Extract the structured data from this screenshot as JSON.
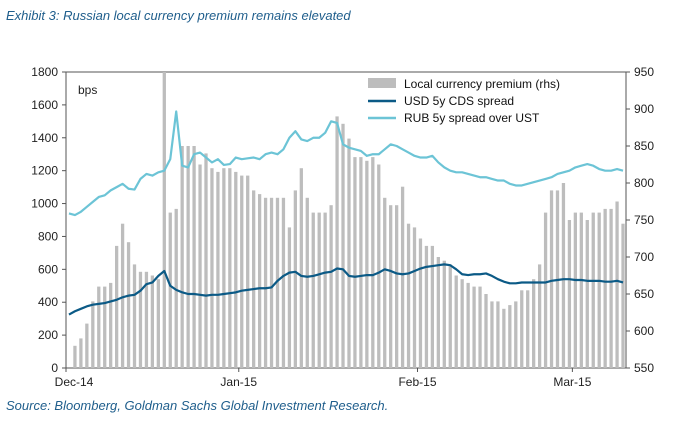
{
  "title": "Exhibit 3: Russian local currency premium remains elevated",
  "source": "Source:  Bloomberg, Goldman Sachs Global Investment Research.",
  "chart_data": {
    "type": "bar+line",
    "unit_label": "bps",
    "x_tick_labels": [
      "Dec-14",
      "Jan-15",
      "Feb-15",
      "Mar-15"
    ],
    "x_tick_index": [
      0,
      29,
      59,
      85
    ],
    "y_left": {
      "min": 0,
      "max": 1800,
      "ticks": [
        0,
        200,
        400,
        600,
        800,
        1000,
        1200,
        1400,
        1600,
        1800
      ]
    },
    "y_right": {
      "min": 550,
      "max": 950,
      "ticks": [
        550,
        600,
        650,
        700,
        750,
        800,
        850,
        900,
        950
      ]
    },
    "grid": false,
    "legend_position": "top-right",
    "colors": {
      "bars": "#bdbdbd",
      "cds": "#0b5a86",
      "rub": "#6cc4d6"
    },
    "series": [
      {
        "name": "Local currency premium (rhs)",
        "axis": "right",
        "type": "bar",
        "values": [
          550,
          580,
          590,
          610,
          640,
          660,
          660,
          665,
          715,
          745,
          720,
          690,
          680,
          680,
          675,
          670,
          950,
          760,
          765,
          850,
          850,
          850,
          825,
          840,
          820,
          815,
          820,
          820,
          815,
          810,
          810,
          790,
          785,
          780,
          780,
          780,
          780,
          740,
          790,
          820,
          780,
          760,
          760,
          760,
          770,
          890,
          880,
          860,
          835,
          835,
          830,
          835,
          825,
          780,
          770,
          770,
          795,
          745,
          740,
          725,
          715,
          715,
          700,
          695,
          690,
          675,
          670,
          665,
          660,
          660,
          650,
          640,
          640,
          630,
          635,
          640,
          655,
          655,
          670,
          690,
          760,
          790,
          790,
          800,
          750,
          760,
          760,
          750,
          760,
          760,
          765,
          765,
          775,
          745
        ]
      },
      {
        "name": "USD 5y CDS spread",
        "axis": "left",
        "type": "line",
        "values": [
          325,
          345,
          360,
          375,
          385,
          390,
          395,
          405,
          415,
          430,
          440,
          445,
          470,
          510,
          520,
          560,
          590,
          500,
          475,
          460,
          450,
          450,
          445,
          440,
          445,
          445,
          450,
          455,
          460,
          470,
          475,
          480,
          485,
          485,
          490,
          530,
          560,
          580,
          585,
          560,
          555,
          560,
          570,
          580,
          585,
          605,
          600,
          560,
          555,
          560,
          565,
          565,
          580,
          600,
          590,
          575,
          570,
          575,
          590,
          605,
          615,
          620,
          625,
          630,
          625,
          600,
          570,
          565,
          570,
          570,
          575,
          560,
          540,
          525,
          515,
          515,
          520,
          520,
          520,
          520,
          520,
          530,
          535,
          540,
          540,
          535,
          535,
          530,
          530,
          530,
          525,
          525,
          530,
          520
        ]
      },
      {
        "name": "RUB 5y spread over UST",
        "axis": "left",
        "type": "line",
        "values": [
          940,
          930,
          950,
          980,
          1010,
          1040,
          1050,
          1080,
          1100,
          1120,
          1090,
          1085,
          1150,
          1180,
          1170,
          1190,
          1200,
          1270,
          1560,
          1230,
          1220,
          1300,
          1310,
          1280,
          1250,
          1270,
          1235,
          1240,
          1280,
          1270,
          1275,
          1280,
          1270,
          1300,
          1310,
          1300,
          1330,
          1400,
          1440,
          1390,
          1380,
          1400,
          1400,
          1430,
          1500,
          1490,
          1360,
          1340,
          1330,
          1320,
          1290,
          1300,
          1300,
          1330,
          1360,
          1350,
          1330,
          1310,
          1290,
          1280,
          1280,
          1290,
          1250,
          1220,
          1200,
          1190,
          1190,
          1180,
          1170,
          1160,
          1160,
          1150,
          1140,
          1140,
          1120,
          1110,
          1110,
          1120,
          1130,
          1140,
          1150,
          1160,
          1180,
          1190,
          1200,
          1220,
          1230,
          1240,
          1230,
          1210,
          1200,
          1200,
          1210,
          1200
        ]
      }
    ]
  }
}
